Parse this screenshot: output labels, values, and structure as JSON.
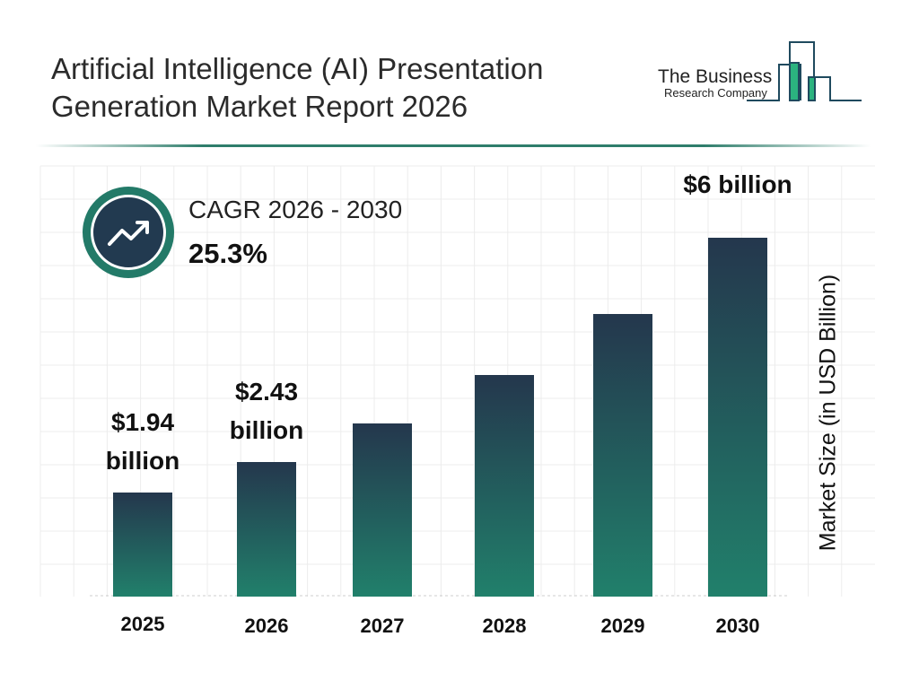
{
  "title_line1": "Artificial Intelligence (AI) Presentation",
  "title_line2": "Generation Market Report 2026",
  "logo": {
    "line1": "The Business",
    "line2": "Research Company"
  },
  "cagr": {
    "label": "CAGR 2026 - 2030",
    "value": "25.3%",
    "icon": "trending-up-icon"
  },
  "colors": {
    "bar_top": "#24374d",
    "bar_bottom": "#21806b",
    "accent": "#237a68"
  },
  "chart_data": {
    "type": "bar",
    "categories": [
      "2025",
      "2026",
      "2027",
      "2028",
      "2029",
      "2030"
    ],
    "values": [
      1.94,
      2.43,
      3.04,
      3.81,
      4.78,
      6.0
    ],
    "data_labels": [
      "$1.94 billion",
      "$2.43 billion",
      "",
      "",
      "",
      "$6 billion"
    ],
    "ylabel": "Market Size (in USD Billion)",
    "grid": true
  }
}
